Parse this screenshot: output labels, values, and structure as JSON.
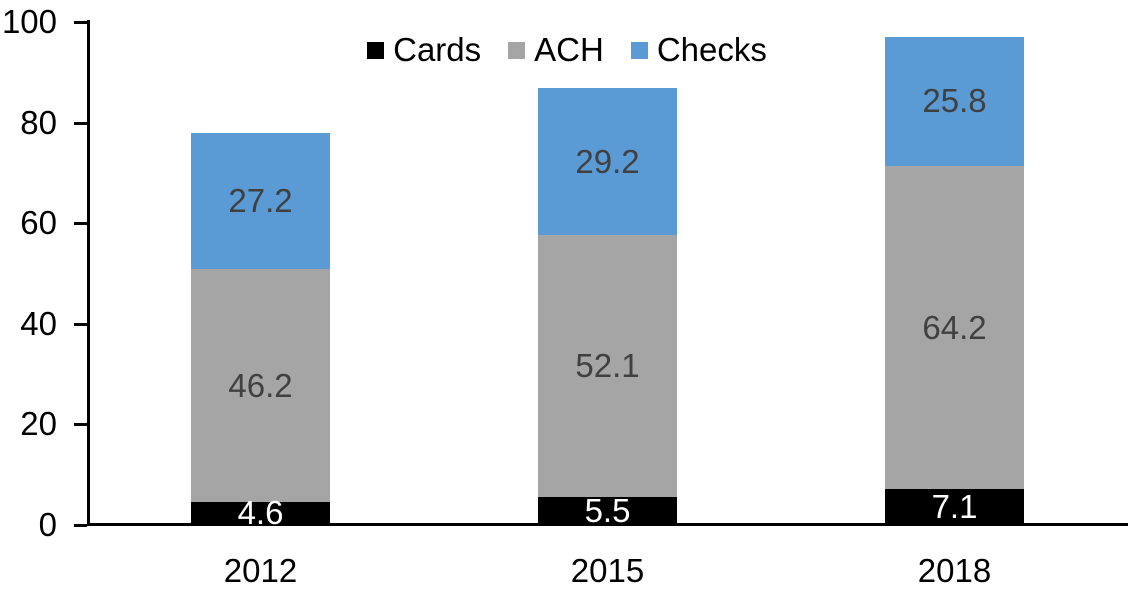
{
  "chart_data": {
    "type": "bar",
    "stacked": true,
    "categories": [
      "2012",
      "2015",
      "2018"
    ],
    "series": [
      {
        "name": "Cards",
        "color": "#000000",
        "label_color": "#ffffff",
        "values": [
          4.6,
          5.5,
          7.1
        ]
      },
      {
        "name": "ACH",
        "color": "#a5a5a5",
        "label_color": "#404040",
        "values": [
          46.2,
          52.1,
          64.2
        ]
      },
      {
        "name": "Checks",
        "color": "#5b9bd5",
        "label_color": "#404040",
        "values": [
          27.2,
          29.2,
          25.8
        ]
      }
    ],
    "data_labels": {
      "cards": [
        "4.6",
        "5.5",
        "7.1"
      ],
      "ach": [
        "46.2",
        "52.1",
        "64.2"
      ],
      "checks": [
        "27.2",
        "29.2",
        "25.8"
      ]
    },
    "yticks": [
      "0",
      "20",
      "40",
      "60",
      "80",
      "100"
    ],
    "ylim": [
      0,
      100
    ],
    "legend_position": "top",
    "legend_entries": [
      "Cards",
      "ACH",
      "Checks"
    ],
    "grid": false,
    "axis_color": "#000000"
  }
}
